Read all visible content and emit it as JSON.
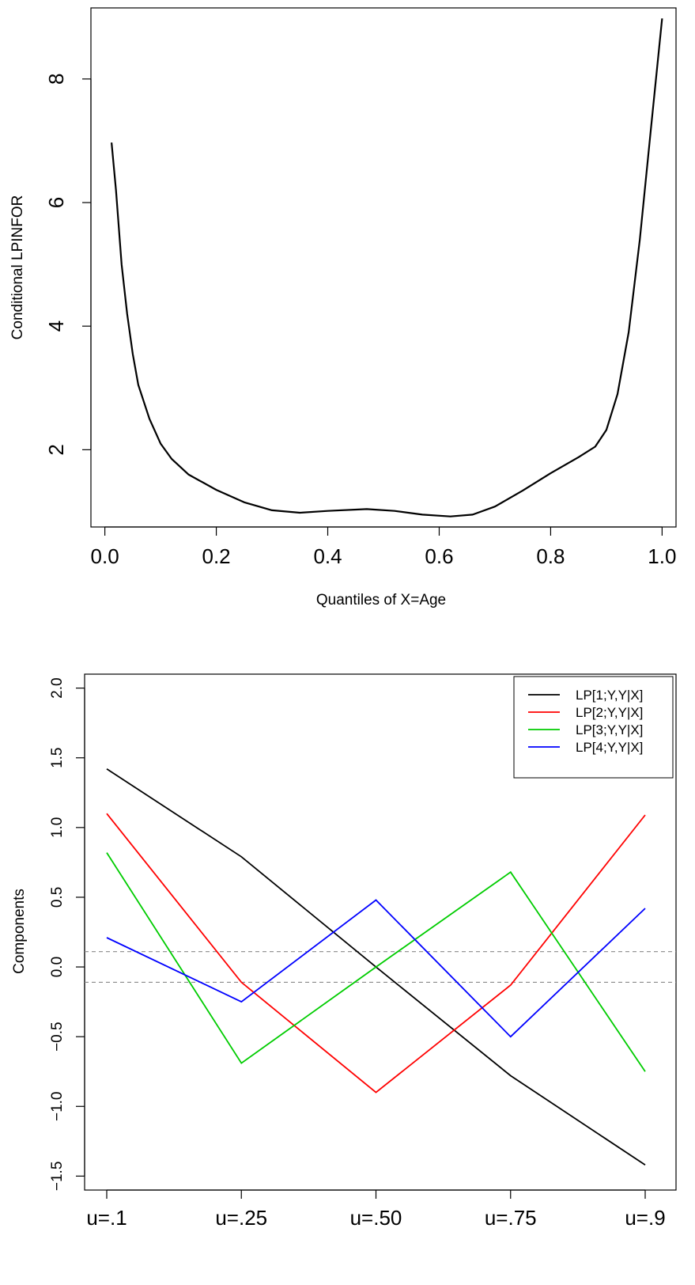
{
  "chart_data": [
    {
      "type": "line",
      "title": "",
      "xlabel": "Quantiles of X=Age",
      "ylabel": "Conditional LPINFOR",
      "xlim": [
        -0.025,
        1.025
      ],
      "ylim": [
        0.75,
        9.15
      ],
      "x_ticks": [
        0.0,
        0.2,
        0.4,
        0.6,
        0.8,
        1.0
      ],
      "x_tick_labels": [
        "0.0",
        "0.2",
        "0.4",
        "0.6",
        "0.8",
        "1.0"
      ],
      "y_ticks": [
        2,
        4,
        6,
        8
      ],
      "y_tick_labels": [
        "2",
        "4",
        "6",
        "8"
      ],
      "grid": false,
      "series": [
        {
          "color": "#000000",
          "x": [
            0.012,
            0.02,
            0.03,
            0.04,
            0.05,
            0.06,
            0.08,
            0.1,
            0.12,
            0.15,
            0.2,
            0.25,
            0.3,
            0.35,
            0.4,
            0.47,
            0.52,
            0.57,
            0.62,
            0.66,
            0.7,
            0.75,
            0.8,
            0.85,
            0.88,
            0.9,
            0.92,
            0.94,
            0.96,
            0.98,
            1.0
          ],
          "y": [
            6.97,
            6.2,
            5.0,
            4.2,
            3.55,
            3.05,
            2.5,
            2.1,
            1.85,
            1.6,
            1.35,
            1.15,
            1.02,
            0.98,
            1.01,
            1.04,
            1.01,
            0.95,
            0.92,
            0.95,
            1.08,
            1.34,
            1.62,
            1.88,
            2.05,
            2.32,
            2.9,
            3.9,
            5.4,
            7.2,
            8.98
          ]
        }
      ]
    },
    {
      "type": "line",
      "title": "",
      "xlabel": "",
      "ylabel": "Components",
      "categories": [
        "u=.1",
        "u=.25",
        "u=.50",
        "u=.75",
        "u=.9"
      ],
      "ylim": [
        -1.5,
        2.0
      ],
      "y_ticks": [
        -1.5,
        -1.0,
        -0.5,
        0.0,
        0.5,
        1.0,
        1.5,
        2.0
      ],
      "y_tick_labels": [
        "−1.5",
        "−1.0",
        "−0.5",
        "0.0",
        "0.5",
        "1.0",
        "1.5",
        "2.0"
      ],
      "reference_lines": [
        0.11,
        -0.11
      ],
      "reference_line_color": "#8a8a8a",
      "grid": false,
      "legend_position": "top-right",
      "series": [
        {
          "name": "LP[1;Y,Y|X]",
          "color": "#000000",
          "values": [
            1.42,
            0.79,
            0.0,
            -0.78,
            -1.42
          ]
        },
        {
          "name": "LP[2;Y,Y|X]",
          "color": "#ff0000",
          "values": [
            1.1,
            -0.11,
            -0.9,
            -0.13,
            1.09
          ]
        },
        {
          "name": "LP[3;Y,Y|X]",
          "color": "#00cc00",
          "values": [
            0.82,
            -0.69,
            0.0,
            0.68,
            -0.75
          ]
        },
        {
          "name": "LP[4;Y,Y|X]",
          "color": "#0000ff",
          "values": [
            0.21,
            -0.25,
            0.48,
            -0.5,
            0.42
          ]
        }
      ]
    }
  ]
}
